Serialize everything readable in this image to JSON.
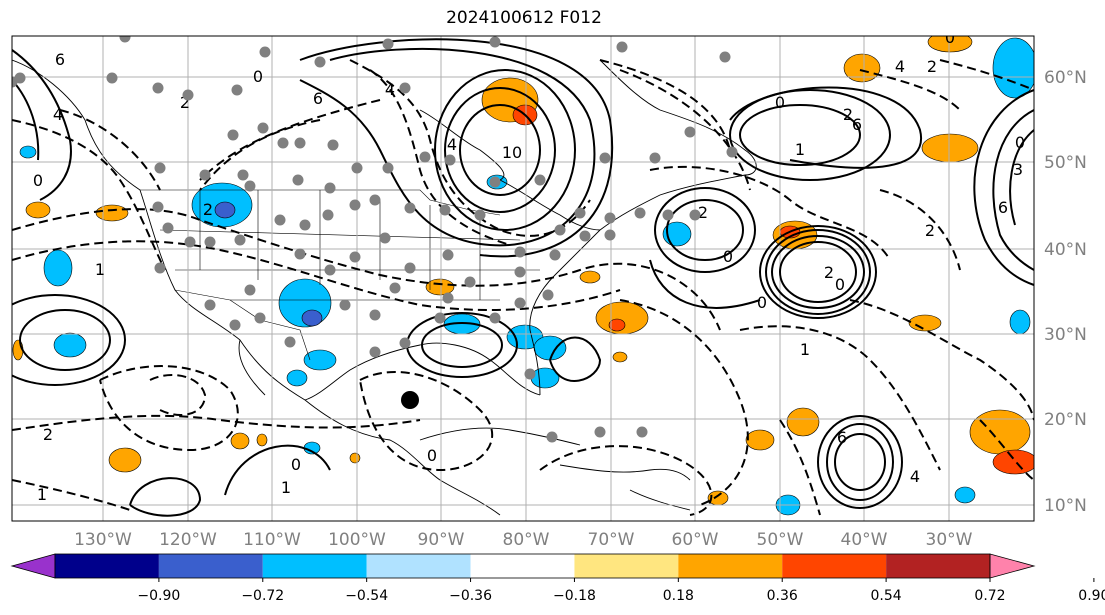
{
  "title": "2024100612 F012",
  "longitude_labels": [
    "130°W",
    "120°W",
    "110°W",
    "100°W",
    "90°W",
    "80°W",
    "70°W",
    "60°W",
    "50°W",
    "40°W",
    "30°W"
  ],
  "latitude_labels": [
    "60°N",
    "50°N",
    "40°N",
    "30°N",
    "20°N",
    "10°N"
  ],
  "colorbar": {
    "ticks": [
      "−0.90",
      "−0.72",
      "−0.54",
      "−0.36",
      "−0.18",
      "0.18",
      "0.36",
      "0.54",
      "0.72",
      "0.90"
    ],
    "colors": [
      "#9932cc",
      "#00008b",
      "#3a5fcd",
      "#00bfff",
      "#b0e2ff",
      "#ffffff",
      "#ffe680",
      "#ffa500",
      "#ff4500",
      "#b22222",
      "#ff82ab"
    ]
  },
  "contour_labels": [
    "6",
    "4",
    "0",
    "2",
    "4",
    "6",
    "10",
    "4",
    "2",
    "0",
    "1",
    "4",
    "6",
    "2",
    "0",
    "3",
    "6",
    "0",
    "2",
    "1",
    "0",
    "2",
    "0",
    "2",
    "0",
    "1",
    "0",
    "2",
    "6",
    "4",
    "2",
    "1",
    "0",
    "1",
    "0"
  ],
  "shading_colors": {
    "positive": "#ffa500",
    "positive_strong": "#ff4500",
    "negative": "#00bfff",
    "negative_strong": "#3a5fcd"
  },
  "markers": {
    "station_color": "#808080",
    "storm_color": "#000000"
  }
}
